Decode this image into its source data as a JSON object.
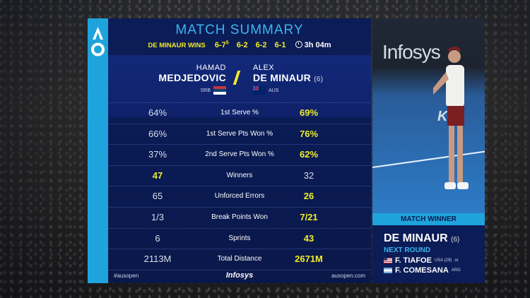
{
  "summary": {
    "title": "MATCH SUMMARY",
    "winner_text": "DE MINAUR WINS",
    "sets": [
      {
        "score": "6-7",
        "tiebreak": "5"
      },
      {
        "score": "6-2",
        "tiebreak": ""
      },
      {
        "score": "6-2",
        "tiebreak": ""
      },
      {
        "score": "6-1",
        "tiebreak": ""
      }
    ],
    "duration": "3h 04m"
  },
  "player1": {
    "first_name": "HAMAD",
    "last_name": "MEDJEDOVIC",
    "country": "SRB"
  },
  "player2": {
    "first_name": "ALEX",
    "last_name": "DE MINAUR",
    "seed": "(6)",
    "country": "AUS"
  },
  "stats": [
    {
      "p1": "64%",
      "label": "1st Serve %",
      "p2": "69%",
      "winner": "p2"
    },
    {
      "p1": "66%",
      "label": "1st Serve Pts Won %",
      "p2": "76%",
      "winner": "p2"
    },
    {
      "p1": "37%",
      "label": "2nd Serve Pts Won %",
      "p2": "62%",
      "winner": "p2"
    },
    {
      "p1": "47",
      "label": "Winners",
      "p2": "32",
      "winner": "p1"
    },
    {
      "p1": "65",
      "label": "Unforced Errors",
      "p2": "26",
      "winner": "p2"
    },
    {
      "p1": "1/3",
      "label": "Break Points Won",
      "p2": "7/21",
      "winner": "p2"
    },
    {
      "p1": "6",
      "label": "Sprints",
      "p2": "43",
      "winner": "p2"
    },
    {
      "p1": "2113M",
      "label": "Total Distance",
      "p2": "2671M",
      "winner": "p2"
    }
  ],
  "footer": {
    "hashtag": "#ausopen",
    "sponsor": "Infosys",
    "website": "ausopen.com"
  },
  "video": {
    "sign": "Infosys",
    "kia": "KIA"
  },
  "match_winner": {
    "label": "MATCH WINNER",
    "name": "DE MINAUR",
    "seed": "(6)",
    "next_round_label": "NEXT ROUND",
    "opponents": [
      {
        "name": "F. TIAFOE",
        "meta": "USA (29)",
        "suffix": "or",
        "country": "USA"
      },
      {
        "name": "F. COMESANA",
        "meta": "ARG",
        "suffix": "",
        "country": "ARG"
      }
    ]
  },
  "colors": {
    "accent_blue": "#1fa3dc",
    "highlight_yellow": "#f1ec28",
    "panel_navy": "#0c1c56"
  }
}
